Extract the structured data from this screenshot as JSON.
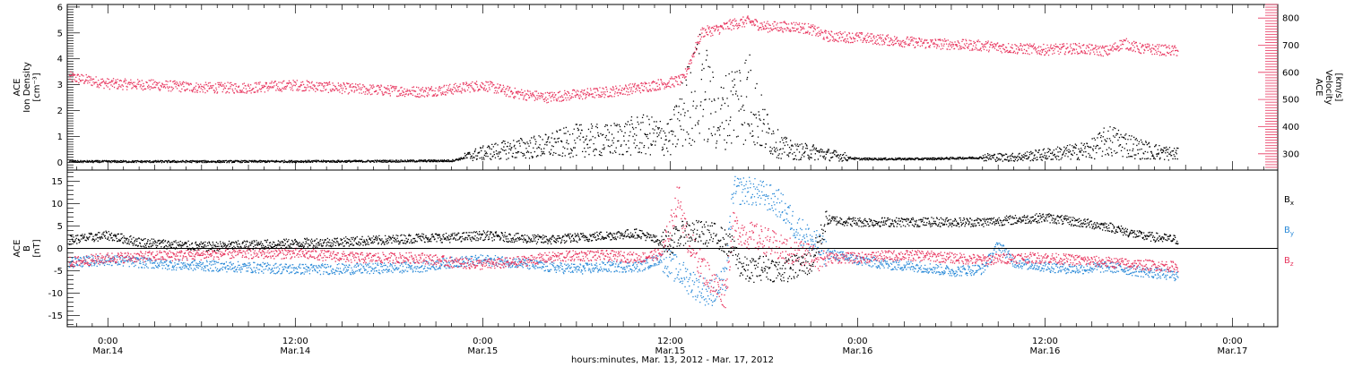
{
  "figure": {
    "x_axis_title": "hours:minutes, Mar. 13, 2012 - Mar. 17, 2012",
    "x_ticks": [
      {
        "hour": 24,
        "time": "0:00",
        "date": "Mar.14"
      },
      {
        "hour": 36,
        "time": "12:00",
        "date": "Mar.14"
      },
      {
        "hour": 48,
        "time": "0:00",
        "date": "Mar.15"
      },
      {
        "hour": 60,
        "time": "12:00",
        "date": "Mar.15"
      },
      {
        "hour": 72,
        "time": "0:00",
        "date": "Mar.16"
      },
      {
        "hour": 84,
        "time": "12:00",
        "date": "Mar.16"
      },
      {
        "hour": 96,
        "time": "0:00",
        "date": "Mar.17"
      }
    ],
    "x_range_hours_since_mar13": [
      21.4,
      98.9
    ]
  },
  "chart_data": [
    {
      "type": "scatter",
      "panel": "top",
      "left_axis": {
        "label_lines": [
          "ACE",
          "Ion Density",
          "[cm⁻³]"
        ],
        "ylim": [
          -0.3,
          6.1
        ],
        "ticks": [
          0,
          1,
          2,
          3,
          4,
          5,
          6
        ]
      },
      "right_axis": {
        "label_lines": [
          "ACE",
          "Velocity",
          "[km/s]"
        ],
        "ylim": [
          240,
          850
        ],
        "ticks": [
          300,
          400,
          500,
          600,
          700,
          800
        ]
      },
      "series": [
        {
          "key": "density",
          "axis": "left",
          "color": "#000000",
          "x_hours": [
            21.5,
            30,
            40,
            46,
            47.5,
            48.5,
            50,
            52,
            54,
            56,
            58,
            60,
            61,
            62,
            63,
            64,
            65,
            66,
            67,
            68,
            69,
            70,
            72,
            76,
            80,
            82,
            84,
            86,
            87,
            88,
            89,
            90,
            91,
            92.5
          ],
          "y": [
            0.05,
            0.05,
            0.06,
            0.08,
            0.3,
            0.4,
            0.5,
            0.6,
            0.8,
            0.8,
            1.0,
            0.9,
            2.0,
            2.8,
            1.5,
            2.2,
            2.4,
            1.2,
            0.6,
            0.4,
            0.4,
            0.3,
            0.15,
            0.15,
            0.2,
            0.2,
            0.3,
            0.4,
            0.5,
            0.8,
            0.7,
            0.5,
            0.4,
            0.3
          ]
        },
        {
          "key": "velocity",
          "axis": "right",
          "color": "#e8365f",
          "x_hours": [
            21.5,
            24,
            27,
            30,
            33,
            36,
            40,
            44,
            46,
            48,
            49,
            50,
            52,
            54,
            56,
            58,
            59.5,
            60,
            60.8,
            62,
            63,
            64,
            65,
            66,
            68,
            69,
            70,
            72,
            74,
            76,
            78,
            80,
            82,
            84,
            86,
            88,
            89,
            90,
            92.5
          ],
          "y": [
            585,
            560,
            555,
            545,
            545,
            555,
            540,
            530,
            540,
            555,
            540,
            525,
            510,
            520,
            530,
            545,
            560,
            565,
            575,
            750,
            760,
            780,
            790,
            770,
            770,
            760,
            735,
            730,
            720,
            710,
            705,
            700,
            690,
            685,
            690,
            680,
            710,
            690,
            680
          ]
        }
      ]
    },
    {
      "type": "scatter",
      "panel": "bottom",
      "left_axis": {
        "label_lines": [
          "ACE",
          "B",
          "[nT]"
        ],
        "ylim": [
          -17.5,
          17.5
        ],
        "ticks": [
          -15,
          -10,
          -5,
          0,
          5,
          10,
          15
        ]
      },
      "series": [
        {
          "key": "bx",
          "label": "B",
          "subscript": "x",
          "color": "#000000",
          "x_hours": [
            21.5,
            24,
            26,
            28,
            30,
            34,
            38,
            42,
            44,
            46,
            48,
            50,
            52,
            54,
            56,
            58,
            59,
            60,
            61,
            62,
            63,
            64,
            64.5,
            65,
            66,
            67,
            68,
            69,
            70,
            72,
            76,
            80,
            82,
            84,
            86,
            88,
            90,
            92.5
          ],
          "y": [
            2,
            3,
            1.5,
            1,
            0.5,
            1,
            1.5,
            2,
            2.5,
            2.5,
            3,
            2.5,
            2,
            2.5,
            3,
            3.5,
            2,
            1.5,
            4,
            3.5,
            3,
            0,
            -4,
            -5,
            -4,
            -5,
            -4,
            -3,
            6.5,
            6,
            6,
            6,
            6.5,
            7,
            6,
            5,
            3,
            2
          ]
        },
        {
          "key": "by",
          "label": "B",
          "subscript": "y",
          "color": "#2b8ad8",
          "x_hours": [
            21.5,
            24,
            28,
            32,
            36,
            40,
            44,
            46,
            48,
            50,
            52,
            54,
            56,
            58,
            59.5,
            60.5,
            61.5,
            62.5,
            63.5,
            64,
            65,
            66,
            67,
            68,
            69,
            70,
            72,
            74,
            76,
            78,
            80,
            81,
            82,
            84,
            86,
            88,
            90,
            92.5
          ],
          "y": [
            -3,
            -2.5,
            -3.5,
            -4,
            -4.5,
            -4.5,
            -4,
            -3,
            -2.5,
            -3,
            -4,
            -4.5,
            -4,
            -4,
            -2,
            -5,
            -8,
            -10,
            -7,
            13,
            13,
            12,
            10,
            5,
            2,
            -1,
            -2.5,
            -3.5,
            -4,
            -5,
            -4.5,
            1,
            -3,
            -4,
            -4.5,
            -4,
            -5,
            -6
          ]
        },
        {
          "key": "bz",
          "label": "B",
          "subscript": "z",
          "color": "#e8365f",
          "x_hours": [
            21.5,
            24,
            28,
            32,
            36,
            40,
            44,
            46,
            48,
            50,
            52,
            54,
            56,
            58,
            59.5,
            60,
            60.5,
            61,
            62,
            63,
            63.5,
            64,
            65,
            66,
            67,
            68,
            69,
            70,
            72,
            74,
            76,
            78,
            80,
            82,
            84,
            86,
            88,
            90,
            92.5
          ],
          "y": [
            -3,
            -2,
            -1.5,
            -1,
            -1,
            -2,
            -2,
            -3,
            -3.5,
            -3,
            -2,
            -1.5,
            -1.5,
            -2,
            -1,
            5,
            12,
            3,
            -4,
            -9,
            -10,
            5,
            3,
            2,
            0,
            -1,
            -1.5,
            -2,
            -2,
            -1.5,
            -1.5,
            -2,
            -2.5,
            -2,
            -2,
            -2.5,
            -3,
            -3.5,
            -4
          ]
        }
      ]
    }
  ]
}
